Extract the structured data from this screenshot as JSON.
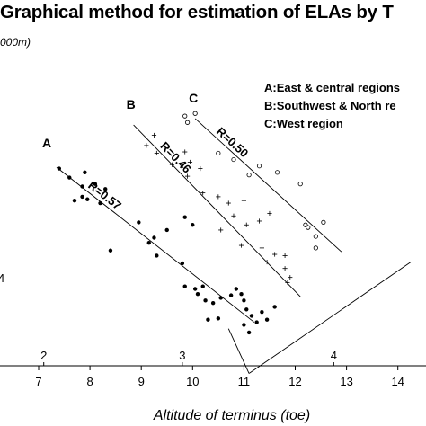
{
  "chart_data": {
    "type": "scatter",
    "title": "Graphical method for estimation of ELAs by T",
    "ylabel": "000m)",
    "xlabel": "Altitude of terminus (toe)",
    "x_ticks": [
      "7",
      "8",
      "9",
      "10",
      "11",
      "12",
      "13",
      "14"
    ],
    "x_range": [
      6.7,
      14.7
    ],
    "y_range": [
      0,
      10
    ],
    "secondary_ticks": [
      {
        "label": "2",
        "x": 7.1
      },
      {
        "label": "3",
        "x": 9.8
      },
      {
        "label": "4",
        "x": 12.75
      }
    ],
    "left_tick_label": "4",
    "legend": [
      "A:East & central regions",
      "B:Southwest & North re",
      "C:West region"
    ],
    "series": [
      {
        "name": "A",
        "marker": "filled-circle",
        "r_label": "R=0.57",
        "fit": [
          [
            7.35,
            7.75
          ],
          [
            11.2,
            1.7
          ]
        ],
        "points": [
          [
            7.4,
            7.7
          ],
          [
            7.6,
            7.35
          ],
          [
            7.85,
            7.0
          ],
          [
            7.9,
            7.55
          ],
          [
            8.1,
            7.1
          ],
          [
            8.3,
            6.9
          ],
          [
            7.95,
            6.5
          ],
          [
            7.7,
            6.45
          ],
          [
            7.85,
            6.6
          ],
          [
            8.2,
            6.35
          ],
          [
            8.4,
            4.5
          ],
          [
            8.95,
            5.6
          ],
          [
            9.3,
            4.3
          ],
          [
            9.5,
            5.3
          ],
          [
            9.25,
            5.0
          ],
          [
            9.15,
            4.8
          ],
          [
            9.85,
            5.8
          ],
          [
            9.8,
            4.0
          ],
          [
            10.0,
            5.5
          ],
          [
            9.85,
            3.1
          ],
          [
            10.05,
            3.0
          ],
          [
            10.1,
            2.8
          ],
          [
            10.2,
            3.1
          ],
          [
            10.25,
            2.55
          ],
          [
            10.4,
            2.45
          ],
          [
            10.55,
            2.65
          ],
          [
            10.3,
            1.8
          ],
          [
            10.5,
            1.85
          ],
          [
            10.75,
            2.75
          ],
          [
            10.85,
            3.0
          ],
          [
            11.0,
            2.55
          ],
          [
            11.05,
            2.2
          ],
          [
            11.15,
            1.95
          ],
          [
            11.0,
            1.6
          ],
          [
            11.35,
            2.1
          ],
          [
            11.1,
            1.3
          ],
          [
            11.25,
            1.7
          ],
          [
            11.45,
            1.8
          ],
          [
            10.95,
            2.8
          ],
          [
            11.6,
            2.3
          ]
        ]
      },
      {
        "name": "B",
        "marker": "plus",
        "r_label": "R=0.46",
        "fit": [
          [
            8.85,
            9.4
          ],
          [
            12.1,
            2.7
          ]
        ],
        "points": [
          [
            9.1,
            8.6
          ],
          [
            9.25,
            9.0
          ],
          [
            9.3,
            8.3
          ],
          [
            9.6,
            7.85
          ],
          [
            9.85,
            8.35
          ],
          [
            9.95,
            7.95
          ],
          [
            9.9,
            7.4
          ],
          [
            10.15,
            7.7
          ],
          [
            10.2,
            6.75
          ],
          [
            10.5,
            6.6
          ],
          [
            10.7,
            6.35
          ],
          [
            10.8,
            5.85
          ],
          [
            11.0,
            6.45
          ],
          [
            11.3,
            5.65
          ],
          [
            11.5,
            5.95
          ],
          [
            11.05,
            5.5
          ],
          [
            11.35,
            4.6
          ],
          [
            11.6,
            4.35
          ],
          [
            11.8,
            4.3
          ],
          [
            11.45,
            4.05
          ],
          [
            11.8,
            3.8
          ],
          [
            11.9,
            3.45
          ],
          [
            11.85,
            3.25
          ],
          [
            10.95,
            4.7
          ],
          [
            10.55,
            5.3
          ]
        ]
      },
      {
        "name": "C",
        "marker": "open-circle",
        "r_label": "R=0.50",
        "fit": [
          [
            10.05,
            9.65
          ],
          [
            12.9,
            4.45
          ]
        ],
        "points": [
          [
            9.85,
            9.75
          ],
          [
            9.9,
            9.5
          ],
          [
            10.05,
            9.85
          ],
          [
            10.5,
            8.3
          ],
          [
            10.8,
            8.05
          ],
          [
            11.1,
            7.45
          ],
          [
            11.3,
            7.8
          ],
          [
            11.65,
            7.55
          ],
          [
            12.1,
            7.1
          ],
          [
            12.25,
            5.4
          ],
          [
            12.4,
            5.05
          ],
          [
            12.2,
            5.5
          ],
          [
            12.4,
            4.6
          ],
          [
            12.55,
            5.6
          ]
        ]
      }
    ],
    "envelope_lines": [
      [
        [
          10.7,
          1.45
        ],
        [
          11.1,
          -0.3
        ]
      ],
      [
        [
          11.1,
          -0.3
        ],
        [
          14.25,
          4.05
        ]
      ]
    ]
  }
}
